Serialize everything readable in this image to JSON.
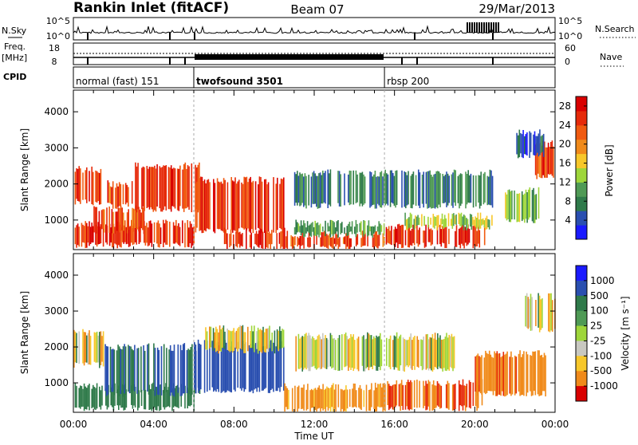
{
  "header": {
    "station": "Rankin Inlet (fitACF)",
    "beam": "Beam 07",
    "date": "29/Mar/2013"
  },
  "strip": {
    "nsky_label": "N.Sky",
    "nsearch_label": "N.Search",
    "freq_label": "Freq.",
    "freq_unit": "[MHz]",
    "nave_label": "Nave",
    "cpid_label": "CPID",
    "left_top_tick": "10^5",
    "left_bottom_tick": "10^0",
    "right_top_tick": "10^5",
    "right_bottom_tick": "10^0",
    "freq_ticks": [
      "18",
      "8"
    ],
    "nave_ticks": [
      "60",
      "0"
    ]
  },
  "cpid": [
    {
      "label": "normal (fast) 151",
      "start_hour": 0
    },
    {
      "label": "twofsound 3501",
      "start_hour": 6
    },
    {
      "label": "rbsp 200",
      "start_hour": 15.5
    }
  ],
  "colors": {
    "power_scale": [
      "#1a1aff",
      "#2a4fb0",
      "#2f7a4a",
      "#4f9a55",
      "#9ed63a",
      "#f7c72a",
      "#f08a1a",
      "#f05a10",
      "#e62a0a",
      "#d90000"
    ],
    "velocity_scale": [
      "#1a1aff",
      "#2a4fb0",
      "#2f7a4a",
      "#4f9a55",
      "#9ed63a",
      "#c8c8c0",
      "#f7c72a",
      "#f08a1a",
      "#e62a0a",
      "#d90000"
    ]
  },
  "chart_data": [
    {
      "type": "heatmap",
      "name_panel": "power",
      "xlabel": "",
      "ylabel": "Slant Range [km]",
      "xlim": [
        0,
        24
      ],
      "ylim": [
        180,
        4600
      ],
      "y_ticks": [
        1000,
        2000,
        3000,
        4000
      ],
      "colorbar_label": "Power [dB]",
      "colorbar_ticks": [
        4,
        8,
        12,
        16,
        20,
        24,
        28
      ],
      "colorbar_range": [
        0,
        30
      ],
      "bands": [
        {
          "t0": 0.0,
          "t1": 6.0,
          "r0": 300,
          "r1": 900,
          "v": 26
        },
        {
          "t0": 1.0,
          "t1": 3.5,
          "r0": 700,
          "r1": 1300,
          "v": 24
        },
        {
          "t0": 0.0,
          "t1": 1.5,
          "r0": 1500,
          "r1": 2400,
          "v": 25
        },
        {
          "t0": 1.5,
          "t1": 3.0,
          "r0": 1400,
          "r1": 2000,
          "v": 24
        },
        {
          "t0": 3.0,
          "t1": 6.3,
          "r0": 1300,
          "r1": 2500,
          "v": 26
        },
        {
          "t0": 6.0,
          "t1": 10.5,
          "r0": 700,
          "r1": 2100,
          "v": 25
        },
        {
          "t0": 7.5,
          "t1": 10.5,
          "r0": 250,
          "r1": 700,
          "v": 26
        },
        {
          "t0": 10.5,
          "t1": 15.5,
          "r0": 250,
          "r1": 600,
          "v": 24
        },
        {
          "t0": 11.0,
          "t1": 15.5,
          "r0": 600,
          "r1": 900,
          "v": 10
        },
        {
          "t0": 15.5,
          "t1": 20.5,
          "r0": 300,
          "r1": 800,
          "v": 26
        },
        {
          "t0": 16.5,
          "t1": 21.0,
          "r0": 800,
          "r1": 1100,
          "v": 14
        },
        {
          "t0": 11.0,
          "t1": 21.0,
          "r0": 1400,
          "r1": 2300,
          "v": 8
        },
        {
          "t0": 21.5,
          "t1": 23.2,
          "r0": 1000,
          "r1": 1800,
          "v": 12
        },
        {
          "t0": 23.0,
          "t1": 24.0,
          "r0": 2200,
          "r1": 3100,
          "v": 24
        },
        {
          "t0": 22.0,
          "t1": 23.5,
          "r0": 2800,
          "r1": 3400,
          "v": 6
        }
      ]
    },
    {
      "type": "heatmap",
      "name_panel": "velocity",
      "xlabel": "Time UT",
      "ylabel": "Slant Range [km]",
      "xlim": [
        0,
        24
      ],
      "ylim": [
        180,
        4600
      ],
      "x_ticks": [
        "00:00",
        "04:00",
        "08:00",
        "12:00",
        "16:00",
        "20:00",
        "00:00"
      ],
      "y_ticks": [
        1000,
        2000,
        3000,
        4000
      ],
      "colorbar_label": "Velocity [m s⁻¹]",
      "colorbar_ticks": [
        1000,
        500,
        100,
        25,
        -25,
        -100,
        -500,
        -1000
      ],
      "bands": [
        {
          "t0": 0.0,
          "t1": 6.0,
          "r0": 300,
          "r1": 900,
          "v": 300
        },
        {
          "t0": 0.0,
          "t1": 1.5,
          "r0": 1500,
          "r1": 2400,
          "v": 0
        },
        {
          "t0": 1.5,
          "t1": 6.3,
          "r0": 700,
          "r1": 2000,
          "v": 500
        },
        {
          "t0": 6.0,
          "t1": 10.5,
          "r0": 800,
          "r1": 2100,
          "v": 700
        },
        {
          "t0": 6.5,
          "t1": 10.5,
          "r0": 1900,
          "r1": 2500,
          "v": 0
        },
        {
          "t0": 10.5,
          "t1": 15.5,
          "r0": 250,
          "r1": 900,
          "v": -200
        },
        {
          "t0": 15.5,
          "t1": 20.5,
          "r0": 300,
          "r1": 1000,
          "v": -500
        },
        {
          "t0": 11.0,
          "t1": 19.0,
          "r0": 1400,
          "r1": 2300,
          "v": 0
        },
        {
          "t0": 20.0,
          "t1": 23.5,
          "r0": 700,
          "r1": 1800,
          "v": -400
        },
        {
          "t0": 22.5,
          "t1": 24.0,
          "r0": 2500,
          "r1": 3400,
          "v": 0
        }
      ]
    }
  ]
}
